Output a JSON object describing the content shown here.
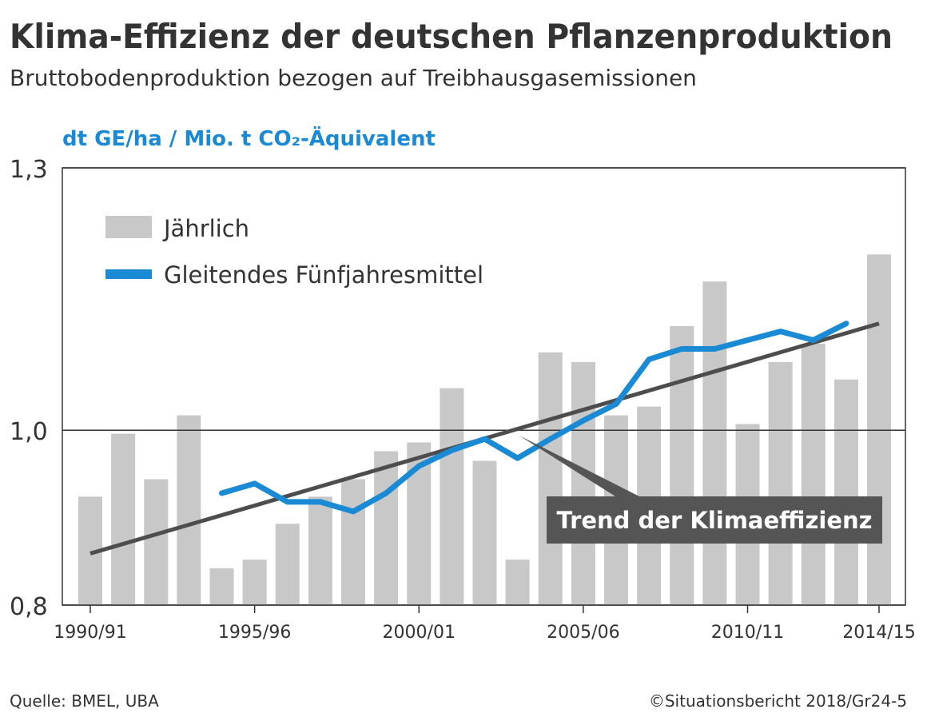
{
  "chart_data": {
    "type": "bar",
    "title": "Klima-Effizienz der deutschen Pflanzenproduktion",
    "subtitle": "Bruttobodenproduktion bezogen auf Treibhausgasemissionen",
    "y_label": "dt GE/ha / Mio. t CO₂-Äquivalent",
    "categories": [
      "1990/91",
      null,
      null,
      null,
      null,
      "1995/96",
      null,
      null,
      null,
      null,
      "2000/01",
      null,
      null,
      null,
      null,
      "2005/06",
      null,
      null,
      null,
      null,
      "2010/11",
      null,
      null,
      null,
      "2014/15"
    ],
    "series": [
      {
        "name": "Jährlich",
        "type": "bar",
        "color": "#c8c8c8",
        "values": [
          0.924,
          0.996,
          0.944,
          1.017,
          0.842,
          0.852,
          0.893,
          0.924,
          0.944,
          0.976,
          0.986,
          1.048,
          0.965,
          0.852,
          1.089,
          1.078,
          1.017,
          1.027,
          1.119,
          1.17,
          1.007,
          1.078,
          1.099,
          1.058,
          1.201
        ]
      },
      {
        "name": "Gleitendes Fünfjahresmittel",
        "type": "line",
        "color": "#1a8ad4",
        "values": [
          null,
          null,
          null,
          null,
          0.928,
          0.939,
          0.918,
          0.918,
          0.907,
          0.928,
          0.959,
          0.977,
          0.99,
          0.968,
          0.99,
          1.011,
          1.03,
          1.081,
          1.093,
          1.093,
          1.103,
          1.113,
          1.103,
          1.122,
          null
        ]
      }
    ],
    "trend": {
      "label": "Trend der Klimaeffizienz",
      "color": "#4d4d4d",
      "start": 0.859,
      "end": 1.122
    },
    "ylim": [
      0.8,
      1.3
    ],
    "yticks": [
      {
        "value": 0.8,
        "label": "0,8"
      },
      {
        "value": 1.0,
        "label": "1,0"
      },
      {
        "value": 1.3,
        "label": "1,3"
      }
    ],
    "grid": true,
    "source": "Quelle: BMEL, UBA",
    "credit": "©Situationsbericht 2018/Gr24-5"
  }
}
